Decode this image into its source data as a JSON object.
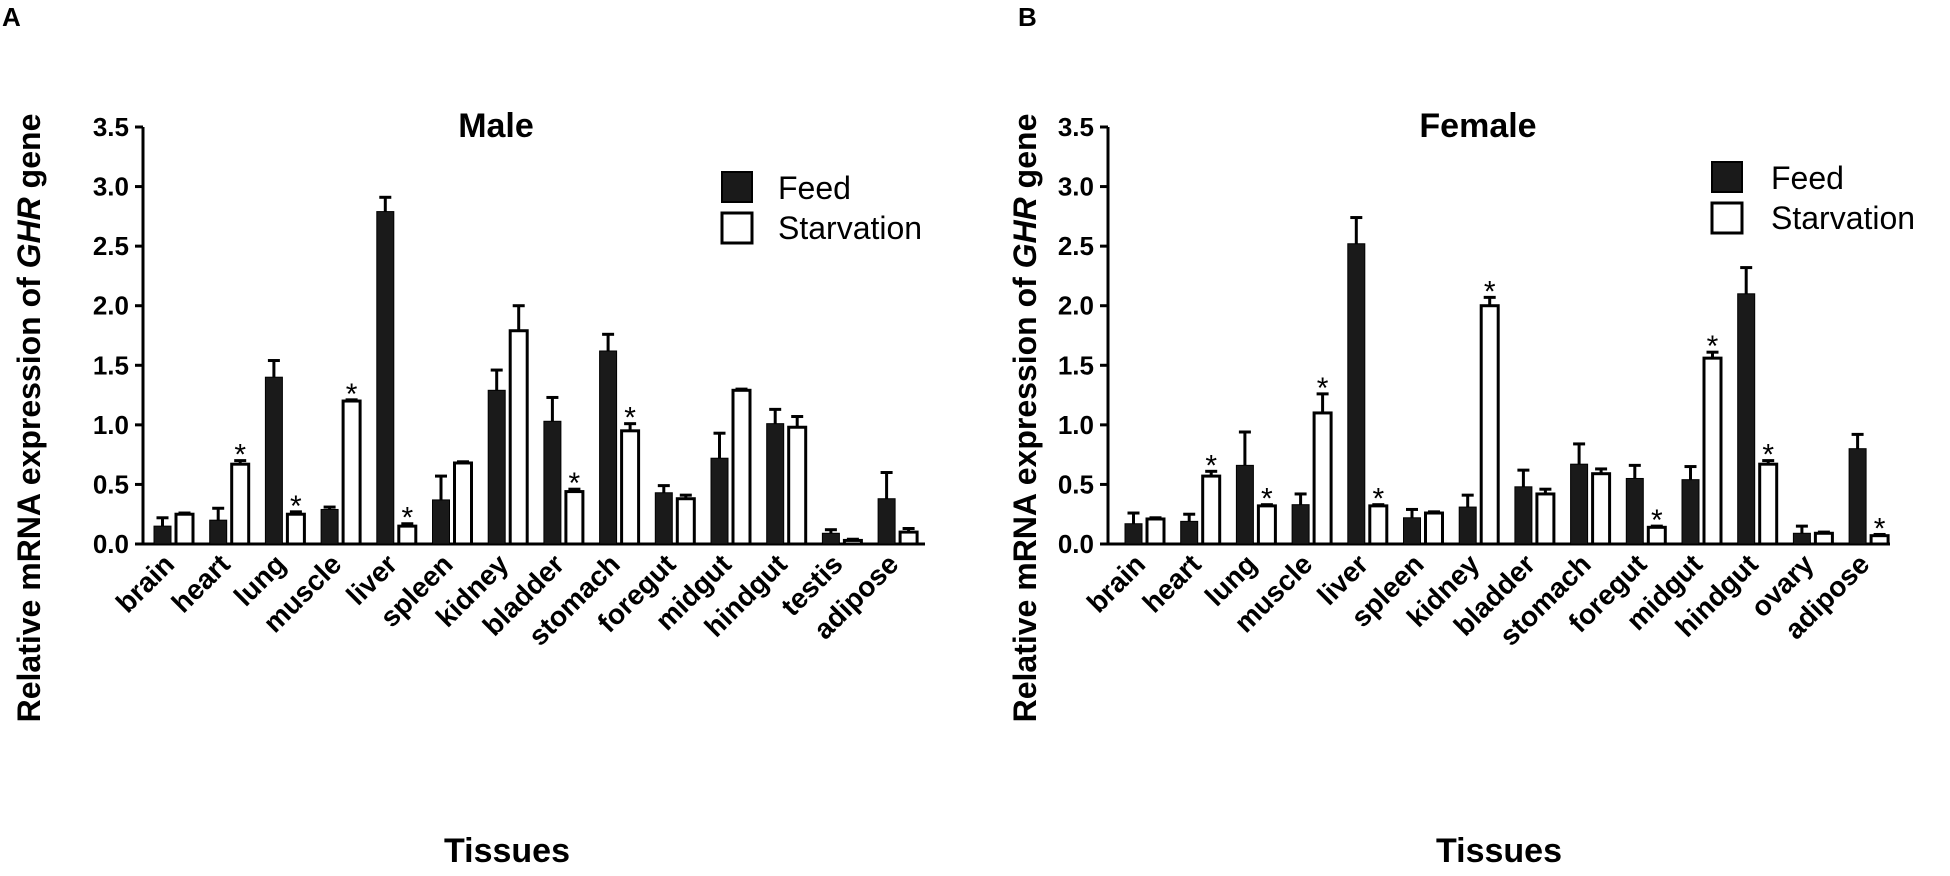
{
  "chart_data": [
    {
      "type": "bar",
      "panel_label": "A",
      "title": "Male",
      "ylabel_prefix": "Relative mRNA expression of ",
      "ylabel_gene": "GHR",
      "ylabel_suffix": " gene",
      "xlabel": "Tissues",
      "ylim": [
        0,
        3.5
      ],
      "yticks": [
        "0.0",
        "0.5",
        "1.0",
        "1.5",
        "2.0",
        "2.5",
        "3.0",
        "3.5"
      ],
      "legend_position": "top-right",
      "categories": [
        "brain",
        "heart",
        "lung",
        "muscle",
        "liver",
        "spleen",
        "kidney",
        "bladder",
        "stomach",
        "foregut",
        "midgut",
        "hindgut",
        "testis",
        "adipose"
      ],
      "series": [
        {
          "name": "Feed",
          "fill": "#1a1a1a",
          "values": [
            0.15,
            0.2,
            1.4,
            0.29,
            2.79,
            0.37,
            1.29,
            1.03,
            1.62,
            0.43,
            0.72,
            1.01,
            0.09,
            0.38
          ],
          "errors": [
            0.07,
            0.1,
            0.14,
            0.02,
            0.12,
            0.2,
            0.17,
            0.2,
            0.14,
            0.06,
            0.21,
            0.12,
            0.03,
            0.22
          ],
          "significant": [
            false,
            false,
            false,
            false,
            false,
            false,
            false,
            false,
            false,
            false,
            false,
            false,
            false,
            false
          ]
        },
        {
          "name": "Starvation",
          "fill": "#ffffff",
          "values": [
            0.25,
            0.67,
            0.25,
            1.2,
            0.15,
            0.68,
            1.79,
            0.44,
            0.95,
            0.38,
            1.29,
            0.98,
            0.03,
            0.1
          ],
          "errors": [
            0.01,
            0.03,
            0.02,
            0.01,
            0.02,
            0.01,
            0.21,
            0.02,
            0.06,
            0.03,
            0.01,
            0.09,
            0.01,
            0.03
          ],
          "significant": [
            false,
            true,
            true,
            true,
            true,
            false,
            false,
            true,
            true,
            false,
            false,
            false,
            false,
            false
          ]
        }
      ]
    },
    {
      "type": "bar",
      "panel_label": "B",
      "title": "Female",
      "ylabel_prefix": "Relative mRNA expression of ",
      "ylabel_gene": "GHR",
      "ylabel_suffix": " gene",
      "xlabel": "Tissues",
      "ylim": [
        0,
        3.5
      ],
      "yticks": [
        "0.0",
        "0.5",
        "1.0",
        "1.5",
        "2.0",
        "2.5",
        "3.0",
        "3.5"
      ],
      "legend_position": "top-right",
      "categories": [
        "brain",
        "heart",
        "lung",
        "muscle",
        "liver",
        "spleen",
        "kidney",
        "bladder",
        "stomach",
        "foregut",
        "midgut",
        "hindgut",
        "ovary",
        "adipose"
      ],
      "series": [
        {
          "name": "Feed",
          "fill": "#1a1a1a",
          "values": [
            0.17,
            0.19,
            0.66,
            0.33,
            2.52,
            0.22,
            0.31,
            0.48,
            0.67,
            0.55,
            0.54,
            2.1,
            0.09,
            0.8
          ],
          "errors": [
            0.09,
            0.06,
            0.28,
            0.09,
            0.22,
            0.07,
            0.1,
            0.14,
            0.17,
            0.11,
            0.11,
            0.22,
            0.06,
            0.12
          ],
          "significant": [
            false,
            false,
            false,
            false,
            false,
            false,
            false,
            false,
            false,
            false,
            false,
            false,
            false,
            false
          ]
        },
        {
          "name": "Starvation",
          "fill": "#ffffff",
          "values": [
            0.21,
            0.57,
            0.32,
            1.1,
            0.32,
            0.26,
            2.0,
            0.42,
            0.59,
            0.14,
            1.56,
            0.67,
            0.09,
            0.07
          ],
          "errors": [
            0.01,
            0.04,
            0.01,
            0.16,
            0.01,
            0.01,
            0.07,
            0.04,
            0.04,
            0.01,
            0.05,
            0.03,
            0.01,
            0.01
          ],
          "significant": [
            false,
            true,
            true,
            true,
            true,
            false,
            true,
            false,
            false,
            true,
            true,
            true,
            false,
            true
          ]
        }
      ]
    }
  ]
}
